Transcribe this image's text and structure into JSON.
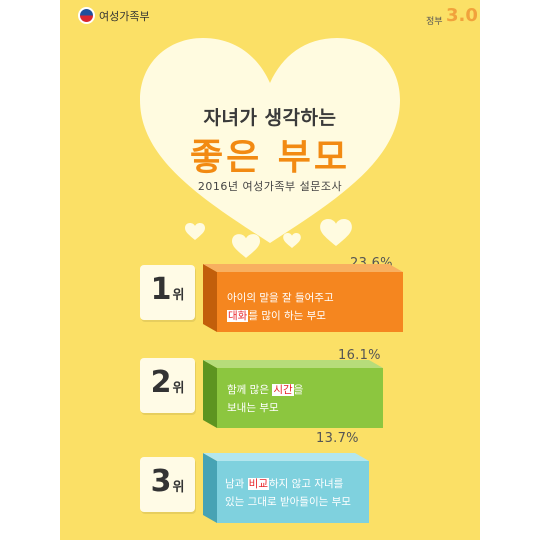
{
  "header": {
    "ministry": "여성가족부",
    "gov_label": "정부",
    "gov_number": "3.0"
  },
  "title": {
    "line1": "자녀가 생각하는",
    "line2": "좋은 부모",
    "survey": "2016년 여성가족부 설문조사"
  },
  "unit": "위",
  "rankings": [
    {
      "rank": "1",
      "percent": "23.6%",
      "text_line1": "아이의 말을 잘 들어주고",
      "text_line2_hl": "대화",
      "text_line2_rest": "를 많이 하는 부모",
      "color": "#f5861f",
      "side_color": "#c25f0b",
      "top_color": "#f8b060"
    },
    {
      "rank": "2",
      "percent": "16.1%",
      "text_line1_pre": "함께 많은 ",
      "text_line1_hl": "시간",
      "text_line1_post": "을",
      "text_line2": "보내는 부모",
      "color": "#8cc63f",
      "side_color": "#5d9420",
      "top_color": "#b6dc7a"
    },
    {
      "rank": "3",
      "percent": "13.7%",
      "text_line1_pre": "남과 ",
      "text_line1_hl": "비교",
      "text_line1_post": "하지 않고 자녀를",
      "text_line2": "있는 그대로 받아들이는 부모",
      "color": "#7fd1de",
      "side_color": "#47a3b4",
      "top_color": "#b3e6ee"
    }
  ]
}
